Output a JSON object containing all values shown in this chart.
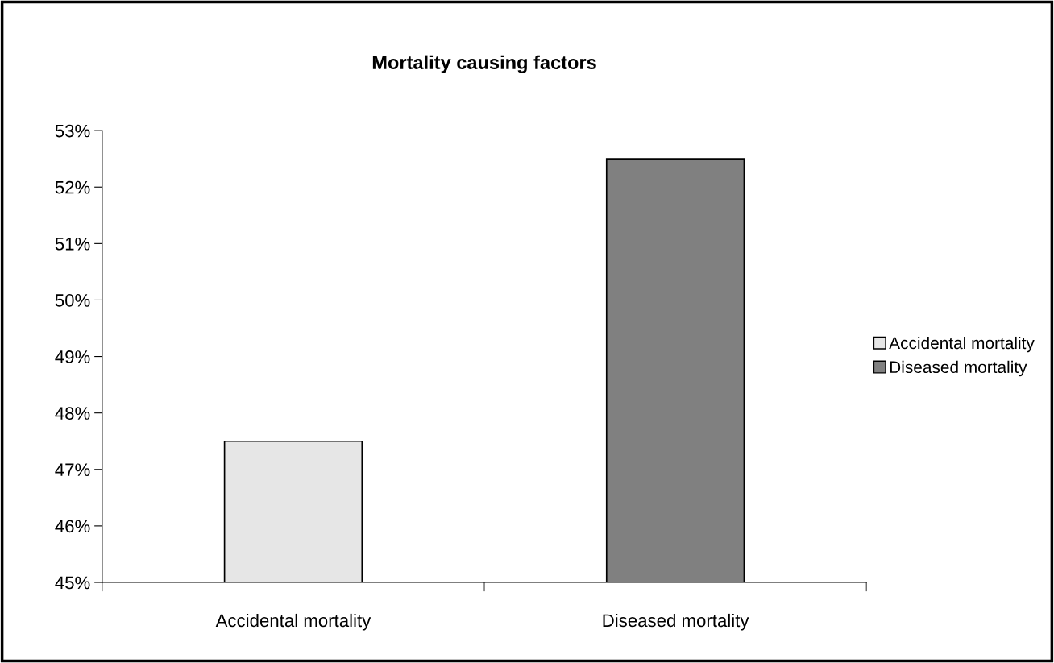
{
  "chart_data": {
    "type": "bar",
    "title": "Mortality causing factors",
    "categories": [
      "Accidental mortality",
      "Diseased mortality"
    ],
    "series": [
      {
        "name": "Accidental mortality",
        "color": "#e6e6e6",
        "values": [
          47.5,
          null
        ]
      },
      {
        "name": "Diseased mortality",
        "color": "#808080",
        "values": [
          null,
          52.5
        ]
      }
    ],
    "ylim": [
      45,
      53
    ],
    "yticks": [
      {
        "value": 45,
        "label": "45%"
      },
      {
        "value": 46,
        "label": "46%"
      },
      {
        "value": 47,
        "label": "47%"
      },
      {
        "value": 48,
        "label": "48%"
      },
      {
        "value": 49,
        "label": "49%"
      },
      {
        "value": 50,
        "label": "50%"
      },
      {
        "value": 51,
        "label": "51%"
      },
      {
        "value": 52,
        "label": "52%"
      },
      {
        "value": 53,
        "label": "53%"
      }
    ],
    "grid": false,
    "legend": "right"
  }
}
